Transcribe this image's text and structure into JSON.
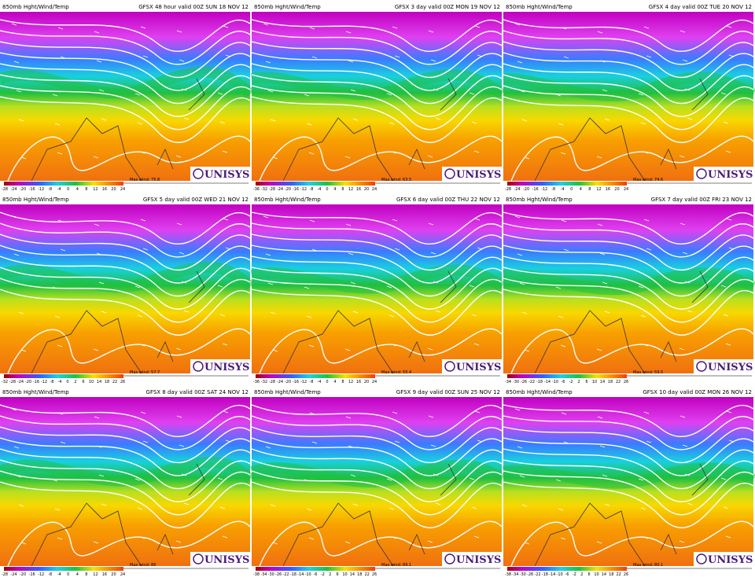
{
  "panels": [
    {
      "product": "850mb Hght/Wind/Temp",
      "valid": "GFSX 48 hour valid 00Z SUN 18 NOV 12",
      "max_wind": "Max wind: 75.8",
      "logo": "UNISYS",
      "scale": [
        "-28",
        "-24",
        "-20",
        "-16",
        "-12",
        "-8",
        "-4",
        "0",
        "4",
        "8",
        "12",
        "16",
        "20",
        "24"
      ]
    },
    {
      "product": "850mb Hght/Wind/Temp",
      "valid": "GFSX 3 day valid 00Z MON 19 NOV 12",
      "max_wind": "Max wind: 63.5",
      "logo": "UNISYS",
      "scale": [
        "-36",
        "-32",
        "-28",
        "-24",
        "-20",
        "-16",
        "-12",
        "-8",
        "-4",
        "0",
        "4",
        "8",
        "12",
        "16",
        "20",
        "24"
      ]
    },
    {
      "product": "850mb Hght/Wind/Temp",
      "valid": "GFSX 4 day valid 00Z TUE 20 NOV 12",
      "max_wind": "Max wind: 74.6",
      "logo": "UNISYS",
      "scale": [
        "-28",
        "-24",
        "-20",
        "-16",
        "-12",
        "-8",
        "-4",
        "0",
        "4",
        "8",
        "12",
        "16",
        "20",
        "24"
      ]
    },
    {
      "product": "850mb Hght/Wind/Temp",
      "valid": "GFSX 5 day valid 00Z WED 21 NOV 12",
      "max_wind": "Max wind: 57.7",
      "logo": "UNISYS",
      "scale": [
        "-32",
        "-28",
        "-24",
        "-20",
        "-16",
        "-12",
        "-8",
        "-4",
        "0",
        "2",
        "6",
        "10",
        "14",
        "18",
        "22",
        "26"
      ]
    },
    {
      "product": "850mb Hght/Wind/Temp",
      "valid": "GFSX 6 day valid 00Z THU 22 NOV 12",
      "max_wind": "Max wind: 55.4",
      "logo": "UNISYS",
      "scale": [
        "-36",
        "-32",
        "-28",
        "-24",
        "-20",
        "-16",
        "-12",
        "-8",
        "-4",
        "0",
        "4",
        "8",
        "12",
        "16",
        "20",
        "24"
      ]
    },
    {
      "product": "850mb Hght/Wind/Temp",
      "valid": "GFSX 7 day valid 00Z FRI 23 NOV 12",
      "max_wind": "Max wind: 59.5",
      "logo": "UNISYS",
      "scale": [
        "-34",
        "-30",
        "-26",
        "-22",
        "-18",
        "-14",
        "-10",
        "-6",
        "-2",
        "2",
        "6",
        "10",
        "14",
        "18",
        "22",
        "26"
      ]
    },
    {
      "product": "850mb Hght/Wind/Temp",
      "valid": "GFSX 8 day valid 00Z SAT 24 NOV 12",
      "max_wind": "Max wind: 86",
      "logo": "UNISYS",
      "scale": [
        "-28",
        "-24",
        "-20",
        "-16",
        "-12",
        "-8",
        "-4",
        "0",
        "4",
        "8",
        "12",
        "16",
        "20",
        "24"
      ]
    },
    {
      "product": "850mb Hght/Wind/Temp",
      "valid": "GFSX 9 day valid 00Z SUN 25 NOV 12",
      "max_wind": "Max wind: 89.1",
      "logo": "UNISYS",
      "scale": [
        "-38",
        "-34",
        "-30",
        "-26",
        "-22",
        "-18",
        "-14",
        "-10",
        "-6",
        "-2",
        "2",
        "6",
        "10",
        "14",
        "18",
        "22",
        "26"
      ]
    },
    {
      "product": "850mb Hght/Wind/Temp",
      "valid": "GFSX 10 day valid 00Z MON 26 NOV 12",
      "max_wind": "Max wind: 80.1",
      "logo": "UNISYS",
      "scale": [
        "-38",
        "-34",
        "-30",
        "-26",
        "-22",
        "-18",
        "-14",
        "-10",
        "-6",
        "-2",
        "2",
        "6",
        "10",
        "14",
        "18",
        "22",
        "26"
      ]
    }
  ]
}
